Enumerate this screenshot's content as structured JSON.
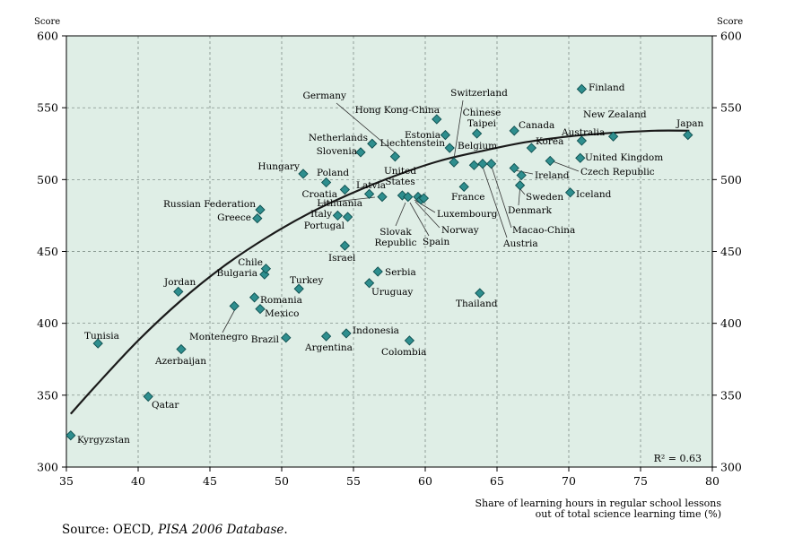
{
  "chart_data": {
    "type": "scatter",
    "ylabel_left": "Score",
    "ylabel_right": "Score",
    "xlabel": [
      "Share of learning hours in regular school lessons",
      "out of total science learning time (%)"
    ],
    "xlim": [
      35,
      80
    ],
    "ylim": [
      300,
      600
    ],
    "xticks": [
      35,
      40,
      45,
      50,
      55,
      60,
      65,
      70,
      75,
      80
    ],
    "yticks": [
      300,
      350,
      400,
      450,
      500,
      550,
      600
    ],
    "grid": "dashed",
    "colors": {
      "plot_bg": "#dfeee6",
      "marker": "#2e8e8e",
      "marker_edge": "#0f4f4f",
      "curve": "#1a1a1a"
    },
    "r2_label": "R² = 0.63",
    "trend": [
      {
        "x": 35.3,
        "y": 337
      },
      {
        "x": 37,
        "y": 356
      },
      {
        "x": 40,
        "y": 388
      },
      {
        "x": 43,
        "y": 416
      },
      {
        "x": 46,
        "y": 440
      },
      {
        "x": 49,
        "y": 460
      },
      {
        "x": 52,
        "y": 477
      },
      {
        "x": 55,
        "y": 491
      },
      {
        "x": 58,
        "y": 503
      },
      {
        "x": 61,
        "y": 513
      },
      {
        "x": 64,
        "y": 520
      },
      {
        "x": 67,
        "y": 526
      },
      {
        "x": 70,
        "y": 530
      },
      {
        "x": 73,
        "y": 532.5
      },
      {
        "x": 76,
        "y": 534
      },
      {
        "x": 78.4,
        "y": 534
      }
    ],
    "points": [
      {
        "name": "Kyrgyzstan",
        "x": 35.3,
        "y": 322
      },
      {
        "name": "Tunisia",
        "x": 37.2,
        "y": 386
      },
      {
        "name": "Qatar",
        "x": 40.7,
        "y": 349
      },
      {
        "name": "Jordan",
        "x": 42.8,
        "y": 422
      },
      {
        "name": "Azerbaijan",
        "x": 43.0,
        "y": 382
      },
      {
        "name": "Montenegro",
        "x": 46.7,
        "y": 412
      },
      {
        "name": "Romania",
        "x": 48.1,
        "y": 418
      },
      {
        "name": "Mexico",
        "x": 48.5,
        "y": 410
      },
      {
        "name": "Bulgaria",
        "x": 48.8,
        "y": 434
      },
      {
        "name": "Chile",
        "x": 48.9,
        "y": 438
      },
      {
        "name": "Russian Federation",
        "x": 48.5,
        "y": 479
      },
      {
        "name": "Greece",
        "x": 48.3,
        "y": 473
      },
      {
        "name": "Brazil",
        "x": 50.3,
        "y": 390
      },
      {
        "name": "Turkey",
        "x": 51.2,
        "y": 424
      },
      {
        "name": "Hungary",
        "x": 51.5,
        "y": 504
      },
      {
        "name": "Poland",
        "x": 53.1,
        "y": 498
      },
      {
        "name": "Argentina",
        "x": 53.1,
        "y": 391
      },
      {
        "name": "Croatia",
        "x": 54.4,
        "y": 493
      },
      {
        "name": "Italy",
        "x": 53.9,
        "y": 475
      },
      {
        "name": "Portugal",
        "x": 54.6,
        "y": 474
      },
      {
        "name": "Israel",
        "x": 54.4,
        "y": 454
      },
      {
        "name": "Indonesia",
        "x": 54.5,
        "y": 393
      },
      {
        "name": "Slovenia",
        "x": 55.5,
        "y": 519
      },
      {
        "name": "Netherlands",
        "x": 56.3,
        "y": 525
      },
      {
        "name": "Latvia",
        "x": 56.1,
        "y": 490
      },
      {
        "name": "Lithuania",
        "x": 57.0,
        "y": 488
      },
      {
        "name": "Uruguay",
        "x": 56.1,
        "y": 428
      },
      {
        "name": "Serbia",
        "x": 56.7,
        "y": 436
      },
      {
        "name": "Germany",
        "x": 57.9,
        "y": 516
      },
      {
        "name": "United States",
        "x": 58.4,
        "y": 489
      },
      {
        "name": "Slovak Republic",
        "x": 58.8,
        "y": 488
      },
      {
        "name": "Colombia",
        "x": 58.9,
        "y": 388
      },
      {
        "name": "Spain",
        "x": 59.5,
        "y": 488
      },
      {
        "name": "Luxembourg",
        "x": 59.7,
        "y": 486
      },
      {
        "name": "Norway",
        "x": 59.9,
        "y": 487
      },
      {
        "name": "Hong Kong-China",
        "x": 60.8,
        "y": 542
      },
      {
        "name": "Estonia",
        "x": 61.4,
        "y": 531
      },
      {
        "name": "Liechtenstein",
        "x": 61.7,
        "y": 522
      },
      {
        "name": "Switzerland",
        "x": 62.0,
        "y": 512
      },
      {
        "name": "France",
        "x": 62.7,
        "y": 495
      },
      {
        "name": "Chinese Taipei",
        "x": 63.6,
        "y": 532
      },
      {
        "name": "Belgium",
        "x": 63.4,
        "y": 510
      },
      {
        "name": "Thailand",
        "x": 63.8,
        "y": 421
      },
      {
        "name": "Austria",
        "x": 64.0,
        "y": 511
      },
      {
        "name": "Macao-China",
        "x": 64.6,
        "y": 511
      },
      {
        "name": "Canada",
        "x": 66.2,
        "y": 534
      },
      {
        "name": "Ireland",
        "x": 66.2,
        "y": 508
      },
      {
        "name": "Denmark",
        "x": 66.6,
        "y": 496
      },
      {
        "name": "Sweden",
        "x": 66.7,
        "y": 503
      },
      {
        "name": "Korea",
        "x": 67.4,
        "y": 522
      },
      {
        "name": "Czech Republic",
        "x": 68.7,
        "y": 513
      },
      {
        "name": "Iceland",
        "x": 70.1,
        "y": 491
      },
      {
        "name": "Finland",
        "x": 70.9,
        "y": 563
      },
      {
        "name": "Australia",
        "x": 70.9,
        "y": 527
      },
      {
        "name": "United Kingdom",
        "x": 70.8,
        "y": 515
      },
      {
        "name": "New Zealand",
        "x": 73.1,
        "y": 530
      },
      {
        "name": "Japan",
        "x": 78.3,
        "y": 531
      }
    ]
  },
  "footer": {
    "source_prefix": "Source: OECD, ",
    "source_italic": "PISA 2006 Database",
    "source_suffix": "."
  }
}
